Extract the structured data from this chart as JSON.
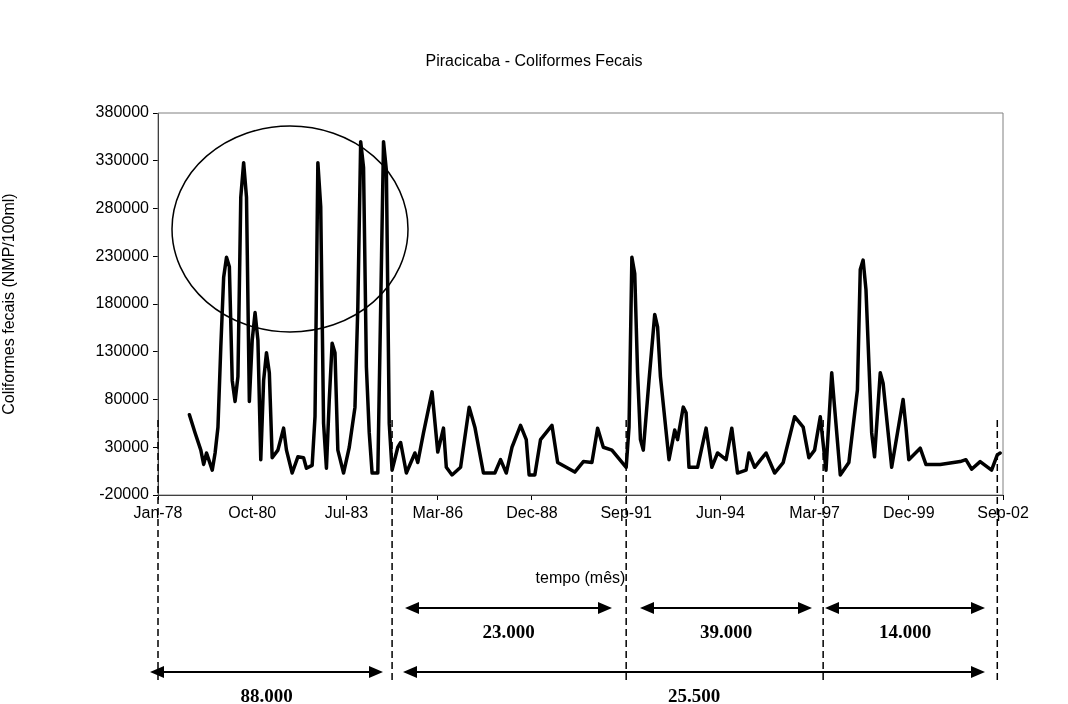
{
  "chart_data": {
    "type": "line",
    "title": "Piracicaba - Coliformes Fecais",
    "xlabel": "tempo (mês)",
    "ylabel": "Coliformes fecais (NMP/100ml)",
    "x": [
      "1978-12",
      "1979-02",
      "1979-04",
      "1979-05",
      "1979-06",
      "1979-08",
      "1979-09",
      "1979-10",
      "1979-11",
      "1979-12",
      "1980-01",
      "1980-02",
      "1980-03",
      "1980-04",
      "1980-05",
      "1980-06",
      "1980-07",
      "1980-08",
      "1980-09",
      "1980-10",
      "1980-11",
      "1980-12",
      "1981-01",
      "1981-02",
      "1981-03",
      "1981-04",
      "1981-05",
      "1981-07",
      "1981-09",
      "1981-10",
      "1981-12",
      "1982-02",
      "1982-04",
      "1982-05",
      "1982-07",
      "1982-08",
      "1982-09",
      "1982-10",
      "1982-11",
      "1982-12",
      "1983-01",
      "1983-02",
      "1983-03",
      "1983-04",
      "1983-06",
      "1983-08",
      "1983-10",
      "1983-11",
      "1983-12",
      "1984-01",
      "1984-02",
      "1984-03",
      "1984-04",
      "1984-06",
      "1984-08",
      "1984-09",
      "1984-10",
      "1984-11",
      "1985-01",
      "1985-02",
      "1985-04",
      "1985-07",
      "1985-08",
      "1985-10",
      "1986-01",
      "1986-03",
      "1986-05",
      "1986-06",
      "1986-08",
      "1986-11",
      "1987-02",
      "1987-04",
      "1987-07",
      "1987-11",
      "1988-01",
      "1988-03",
      "1988-05",
      "1988-08",
      "1988-10",
      "1988-11",
      "1989-01",
      "1989-03",
      "1989-07",
      "1989-09",
      "1989-12",
      "1990-03",
      "1990-06",
      "1990-09",
      "1990-11",
      "1991-01",
      "1991-04",
      "1991-09",
      "1991-10",
      "1991-11",
      "1991-12",
      "1992-01",
      "1992-02",
      "1992-03",
      "1992-05",
      "1992-07",
      "1992-08",
      "1992-09",
      "1992-12",
      "1993-02",
      "1993-03",
      "1993-05",
      "1993-06",
      "1993-07",
      "1993-10",
      "1994-01",
      "1994-03",
      "1994-05",
      "1994-08",
      "1994-10",
      "1994-12",
      "1995-03",
      "1995-04",
      "1995-06",
      "1995-10",
      "1996-01",
      "1996-04",
      "1996-08",
      "1996-11",
      "1997-01",
      "1997-03",
      "1997-05",
      "1997-07",
      "1997-09",
      "1997-10",
      "1997-12",
      "1998-03",
      "1998-06",
      "1998-07",
      "1998-08",
      "1998-09",
      "1998-11",
      "1998-12",
      "1999-02",
      "1999-03",
      "1999-06",
      "1999-10",
      "1999-11",
      "1999-12",
      "2000-04",
      "2000-06",
      "2000-11",
      "2001-06",
      "2001-08",
      "2001-10",
      "2002-01",
      "2002-05",
      "2002-07",
      "2002-08"
    ],
    "series": [
      {
        "color": "#000000",
        "values": [
          64000,
          45000,
          27000,
          12000,
          24000,
          6000,
          24000,
          51000,
          135000,
          208000,
          229000,
          219000,
          100000,
          78000,
          104000,
          292000,
          328000,
          292000,
          78000,
          142000,
          171000,
          142000,
          17000,
          100000,
          129000,
          108000,
          19000,
          27000,
          50000,
          27000,
          3000,
          20000,
          19000,
          8000,
          11000,
          62000,
          328000,
          282000,
          55000,
          8000,
          80000,
          139000,
          129000,
          27000,
          3000,
          30000,
          72000,
          177000,
          350000,
          323000,
          114000,
          45000,
          3000,
          3000,
          350000,
          320000,
          55000,
          6000,
          30000,
          35000,
          3000,
          24000,
          14000,
          45000,
          88000,
          25000,
          50000,
          9000,
          1000,
          9000,
          72000,
          51000,
          3000,
          3000,
          17000,
          3000,
          30000,
          53000,
          38000,
          1000,
          1000,
          38000,
          53000,
          14000,
          9000,
          4000,
          15000,
          14000,
          50000,
          30000,
          27000,
          9000,
          51000,
          229000,
          212000,
          108000,
          38000,
          27000,
          100000,
          169000,
          156000,
          104000,
          17000,
          48000,
          38000,
          72000,
          66000,
          9000,
          9000,
          50000,
          9000,
          24000,
          17000,
          50000,
          3000,
          6000,
          24000,
          9000,
          24000,
          3000,
          14000,
          62000,
          51000,
          19000,
          27000,
          62000,
          6000,
          108000,
          72000,
          1000,
          14000,
          90000,
          216000,
          226000,
          195000,
          45000,
          20000,
          108000,
          97000,
          9000,
          80000,
          51000,
          17000,
          29000,
          12000,
          12000,
          15000,
          17000,
          7000,
          15000,
          6000,
          22000,
          24000
        ]
      }
    ],
    "xlim": [
      "1978-01",
      "2002-09"
    ],
    "xticks": [
      {
        "value": "1978-01",
        "label": "Jan-78"
      },
      {
        "value": "1980-10",
        "label": "Oct-80"
      },
      {
        "value": "1983-07",
        "label": "Jul-83"
      },
      {
        "value": "1986-03",
        "label": "Mar-86"
      },
      {
        "value": "1988-12",
        "label": "Dec-88"
      },
      {
        "value": "1991-09",
        "label": "Sep-91"
      },
      {
        "value": "1994-06",
        "label": "Jun-94"
      },
      {
        "value": "1997-03",
        "label": "Mar-97"
      },
      {
        "value": "1999-12",
        "label": "Dec-99"
      },
      {
        "value": "2002-09",
        "label": "Sep-02"
      }
    ],
    "ylim": [
      -20000,
      380000
    ],
    "yticks": [
      -20000,
      30000,
      80000,
      130000,
      180000,
      230000,
      280000,
      330000,
      380000
    ],
    "ref_lines": [
      {
        "axis": "x",
        "value": "1978-01",
        "line_style": "dashed"
      },
      {
        "axis": "x",
        "value": "1984-11",
        "line_style": "dashed"
      },
      {
        "axis": "x",
        "value": "1991-09",
        "line_style": "dashed"
      },
      {
        "axis": "x",
        "value": "1997-06",
        "line_style": "dashed"
      },
      {
        "axis": "x",
        "value": "2002-07",
        "line_style": "dashed"
      }
    ],
    "annotations": [
      "88.000",
      "25.500",
      "23.000",
      "39.000",
      "14.000"
    ]
  }
}
